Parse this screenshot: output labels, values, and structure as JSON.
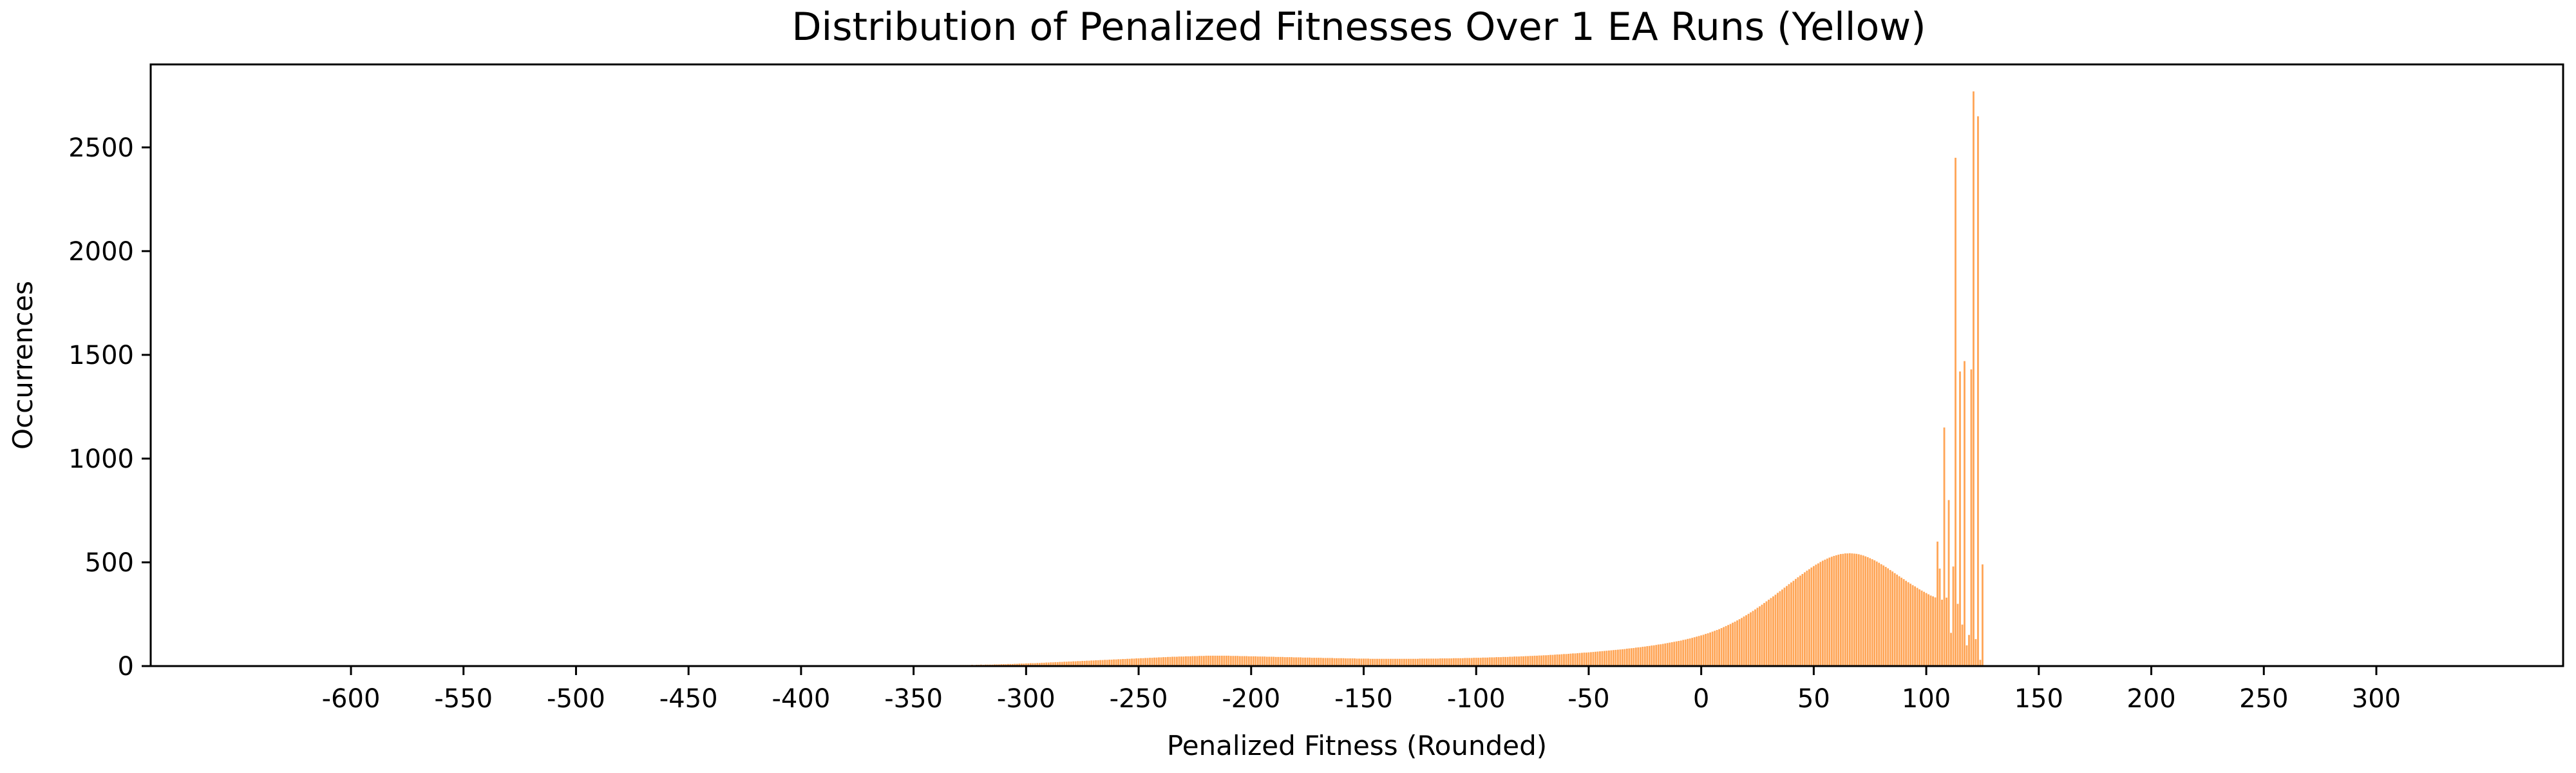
{
  "chart_data": {
    "type": "bar",
    "title": "Distribution of Penalized Fitnesses Over 1 EA Runs (Yellow)",
    "xlabel": "Penalized Fitness (Rounded)",
    "ylabel": "Occurrences",
    "xlim": [
      -689,
      383
    ],
    "ylim": [
      0,
      2900
    ],
    "xticks": [
      -600,
      -550,
      -500,
      -450,
      -400,
      -350,
      -300,
      -250,
      -200,
      -150,
      -100,
      -50,
      0,
      50,
      100,
      150,
      200,
      250,
      300
    ],
    "xtick_labels": [
      "-600",
      "-550",
      "-500",
      "-450",
      "-400",
      "-350",
      "-300",
      "-250",
      "-200",
      "-150",
      "-100",
      "-50",
      "0",
      "50",
      "100",
      "150",
      "200",
      "250",
      "300"
    ],
    "yticks": [
      0,
      500,
      1000,
      1500,
      2000,
      2500
    ],
    "ytick_labels": [
      "0",
      "500",
      "1000",
      "1500",
      "2000",
      "2500"
    ],
    "grid": false,
    "bar_color": "#ff7f0e",
    "bar_alpha": 0.7,
    "bars": {
      "x_start": -355,
      "x_step": 1,
      "values": [
        1,
        1,
        1,
        1,
        2,
        1,
        2,
        2,
        2,
        2,
        2,
        2,
        3,
        2,
        3,
        3,
        3,
        3,
        3,
        4,
        3,
        4,
        4,
        4,
        4,
        4,
        5,
        5,
        5,
        5,
        5,
        6,
        5,
        6,
        6,
        7,
        6,
        7,
        7,
        7,
        7,
        8,
        8,
        8,
        9,
        9,
        9,
        10,
        10,
        10,
        11,
        11,
        12,
        12,
        12,
        13,
        13,
        14,
        14,
        14,
        15,
        15,
        16,
        16,
        17,
        17,
        18,
        18,
        19,
        19,
        20,
        20,
        21,
        21,
        22,
        22,
        23,
        23,
        24,
        24,
        25,
        25,
        26,
        26,
        27,
        27,
        28,
        28,
        29,
        29,
        30,
        30,
        31,
        31,
        32,
        32,
        33,
        33,
        34,
        34,
        35,
        35,
        36,
        36,
        37,
        37,
        38,
        38,
        39,
        39,
        40,
        40,
        41,
        41,
        42,
        42,
        43,
        43,
        44,
        44,
        45,
        45,
        45,
        46,
        46,
        46,
        47,
        47,
        47,
        48,
        48,
        48,
        49,
        49,
        49,
        50,
        50,
        50,
        50,
        50,
        50,
        50,
        50,
        50,
        50,
        50,
        49,
        49,
        49,
        49,
        48,
        48,
        48,
        48,
        47,
        47,
        47,
        47,
        46,
        46,
        46,
        46,
        45,
        45,
        45,
        45,
        44,
        44,
        44,
        44,
        43,
        43,
        43,
        43,
        42,
        42,
        42,
        42,
        41,
        41,
        41,
        41,
        40,
        40,
        40,
        40,
        40,
        39,
        39,
        39,
        39,
        39,
        38,
        38,
        38,
        38,
        38,
        37,
        37,
        37,
        37,
        37,
        36,
        36,
        36,
        36,
        36,
        36,
        35,
        35,
        35,
        35,
        35,
        35,
        35,
        35,
        35,
        35,
        35,
        35,
        35,
        35,
        35,
        35,
        35,
        35,
        35,
        35,
        35,
        35,
        36,
        36,
        36,
        36,
        36,
        36,
        36,
        36,
        36,
        37,
        37,
        37,
        37,
        37,
        37,
        38,
        38,
        38,
        38,
        38,
        39,
        39,
        39,
        39,
        40,
        40,
        40,
        40,
        41,
        41,
        41,
        42,
        42,
        42,
        43,
        43,
        43,
        44,
        44,
        44,
        45,
        45,
        46,
        46,
        46,
        47,
        47,
        48,
        48,
        49,
        49,
        50,
        50,
        51,
        51,
        52,
        52,
        53,
        54,
        54,
        55,
        56,
        56,
        57,
        58,
        58,
        59,
        60,
        61,
        61,
        62,
        63,
        64,
        65,
        65,
        66,
        67,
        68,
        69,
        70,
        71,
        72,
        73,
        74,
        75,
        76,
        77,
        78,
        79,
        80,
        81,
        82,
        84,
        85,
        86,
        87,
        89,
        90,
        91,
        93,
        94,
        96,
        97,
        99,
        100,
        102,
        104,
        105,
        107,
        109,
        111,
        113,
        115,
        117,
        119,
        121,
        123,
        126,
        128,
        131,
        133,
        136,
        139,
        142,
        145,
        148,
        151,
        155,
        158,
        162,
        166,
        170,
        174,
        178,
        183,
        188,
        193,
        198,
        203,
        209,
        214,
        220,
        226,
        232,
        239,
        245,
        252,
        259,
        266,
        273,
        281,
        288,
        296,
        304,
        312,
        320,
        328,
        336,
        344,
        353,
        361,
        369,
        378,
        386,
        395,
        403,
        411,
        420,
        428,
        436,
        444,
        452,
        460,
        467,
        475,
        482,
        489,
        495,
        502,
        508,
        513,
        518,
        523,
        527,
        531,
        534,
        537,
        540,
        541,
        543,
        543,
        544,
        543,
        542,
        541,
        539,
        536,
        533,
        529,
        525,
        520,
        515,
        510,
        504,
        498,
        491,
        485,
        478,
        471,
        463,
        456,
        448,
        441,
        433,
        426,
        419,
        411,
        404,
        397,
        390,
        384,
        377,
        370,
        364,
        358,
        352,
        346,
        340,
        336,
        331,
        600,
        470,
        320,
        1150,
        330,
        800,
        160,
        480,
        2450,
        300,
        1420,
        200,
        1470,
        100,
        150,
        1430,
        2770,
        130,
        2650,
        30,
        490
      ]
    }
  }
}
